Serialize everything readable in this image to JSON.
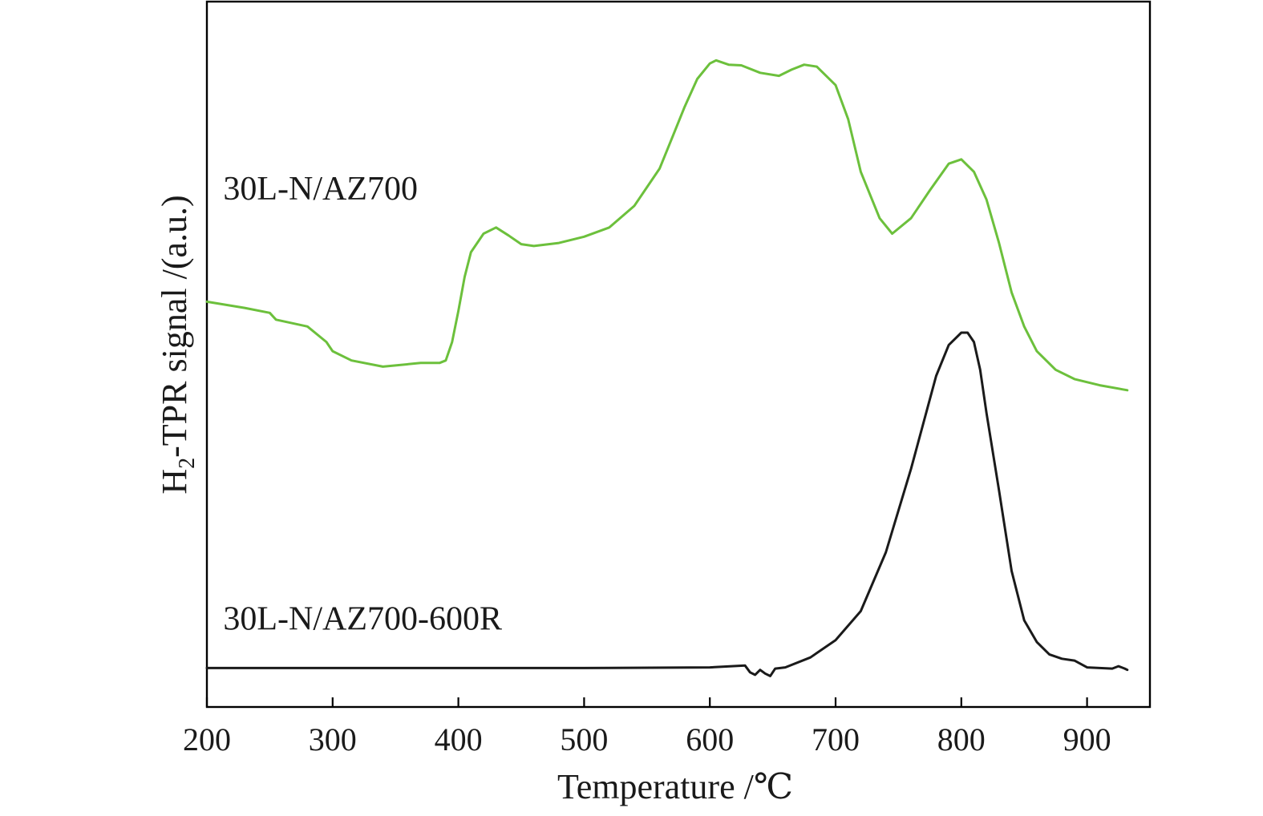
{
  "chart_data": {
    "type": "line",
    "xlabel": "Temperature /℃",
    "ylabel": {
      "base": "H",
      "subscript": "2",
      "rest": "-TPR signal /(a.u.)"
    },
    "xlim": [
      200,
      950
    ],
    "ylim": [
      -0.6,
      10.8
    ],
    "xticks": [
      200,
      300,
      400,
      500,
      600,
      700,
      800,
      900
    ],
    "yticks": [],
    "grid": false,
    "legend": "none",
    "series": [
      {
        "name": "30L-N/AZ700",
        "color": "#6cc03c",
        "label_anchor": [
          213,
          7.6
        ],
        "x": [
          200,
          230,
          250,
          255,
          280,
          295,
          300,
          315,
          340,
          370,
          385,
          390,
          395,
          400,
          405,
          410,
          420,
          430,
          440,
          450,
          460,
          480,
          500,
          520,
          540,
          560,
          570,
          580,
          590,
          600,
          605,
          615,
          625,
          640,
          655,
          665,
          675,
          685,
          700,
          710,
          720,
          735,
          745,
          760,
          775,
          790,
          800,
          810,
          820,
          830,
          840,
          850,
          860,
          875,
          890,
          910,
          932
        ],
        "y": [
          5.95,
          5.85,
          5.77,
          5.66,
          5.55,
          5.3,
          5.15,
          5.0,
          4.9,
          4.96,
          4.96,
          5.0,
          5.3,
          5.8,
          6.35,
          6.75,
          7.05,
          7.15,
          7.02,
          6.88,
          6.85,
          6.9,
          7.0,
          7.15,
          7.5,
          8.1,
          8.6,
          9.1,
          9.55,
          9.8,
          9.85,
          9.78,
          9.77,
          9.65,
          9.6,
          9.7,
          9.78,
          9.75,
          9.45,
          8.9,
          8.05,
          7.3,
          7.05,
          7.3,
          7.75,
          8.18,
          8.25,
          8.05,
          7.6,
          6.9,
          6.1,
          5.55,
          5.15,
          4.85,
          4.7,
          4.6,
          4.52
        ]
      },
      {
        "name": "30L-N/AZ700-600R",
        "color": "#1a1a1a",
        "label_anchor": [
          213,
          0.65
        ],
        "x": [
          200,
          300,
          400,
          500,
          600,
          628,
          632,
          636,
          640,
          644,
          648,
          652,
          660,
          680,
          700,
          720,
          740,
          760,
          780,
          790,
          800,
          805,
          810,
          815,
          820,
          830,
          840,
          850,
          860,
          870,
          880,
          890,
          900,
          910,
          920,
          925,
          930,
          932
        ],
        "y": [
          0.03,
          0.03,
          0.03,
          0.03,
          0.04,
          0.07,
          -0.04,
          -0.08,
          0.0,
          -0.06,
          -0.1,
          0.02,
          0.04,
          0.2,
          0.48,
          0.95,
          1.9,
          3.25,
          4.75,
          5.25,
          5.45,
          5.45,
          5.3,
          4.85,
          4.15,
          2.9,
          1.6,
          0.8,
          0.45,
          0.25,
          0.18,
          0.15,
          0.04,
          0.03,
          0.02,
          0.06,
          0.02,
          0.0
        ]
      }
    ]
  }
}
